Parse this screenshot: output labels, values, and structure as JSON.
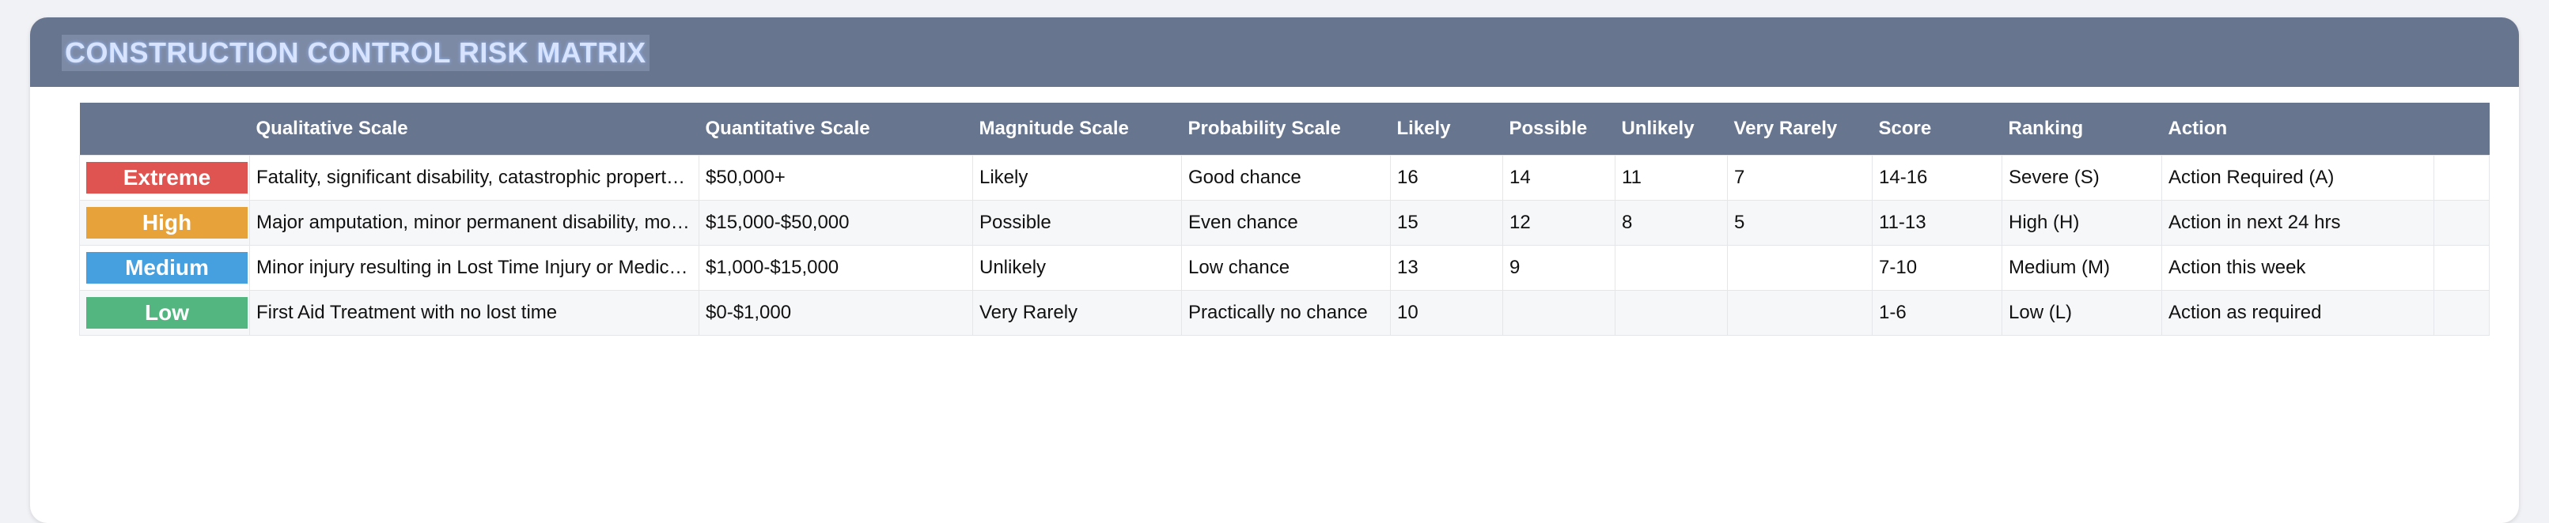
{
  "title": "CONSTRUCTION CONTROL RISK MATRIX",
  "columns": [
    "",
    "Qualitative Scale",
    "Quantitative Scale",
    "Magnitude Scale",
    "Probability Scale",
    "Likely",
    "Possible",
    "Unlikely",
    "Very Rarely",
    "Score",
    "Ranking",
    "Action"
  ],
  "rows": [
    {
      "level": "Extreme",
      "color": "#df5450",
      "qualitative": "Fatality, significant disability, catastrophic property damage",
      "quantitative": "$50,000+",
      "magnitude": "Likely",
      "probability": "Good chance",
      "likely": "16",
      "possible": "14",
      "unlikely": "11",
      "very_rarely": "7",
      "score": "14-16",
      "ranking": "Severe (S)",
      "action": "Action Required (A)"
    },
    {
      "level": "High",
      "color": "#e8a23a",
      "qualitative": "Major amputation, minor permanent disability, moderate property damage",
      "quantitative": "$15,000-$50,000",
      "magnitude": "Possible",
      "probability": "Even chance",
      "likely": "15",
      "possible": "12",
      "unlikely": "8",
      "very_rarely": "5",
      "score": "11-13",
      "ranking": "High (H)",
      "action": "Action in next 24 hrs"
    },
    {
      "level": "Medium",
      "color": "#469fdf",
      "qualitative": "Minor injury resulting in Lost Time Injury or Medically Treated Injury",
      "quantitative": "$1,000-$15,000",
      "magnitude": "Unlikely",
      "probability": "Low chance",
      "likely": "13",
      "possible": "9",
      "unlikely": "",
      "very_rarely": "",
      "score": "7-10",
      "ranking": "Medium (M)",
      "action": "Action this week"
    },
    {
      "level": "Low",
      "color": "#53b57f",
      "qualitative": "First Aid Treatment with no lost time",
      "quantitative": "$0-$1,000",
      "magnitude": "Very Rarely",
      "probability": "Practically no chance",
      "likely": "10",
      "possible": "",
      "unlikely": "",
      "very_rarely": "",
      "score": "1-6",
      "ranking": "Low (L)",
      "action": "Action as required"
    }
  ]
}
